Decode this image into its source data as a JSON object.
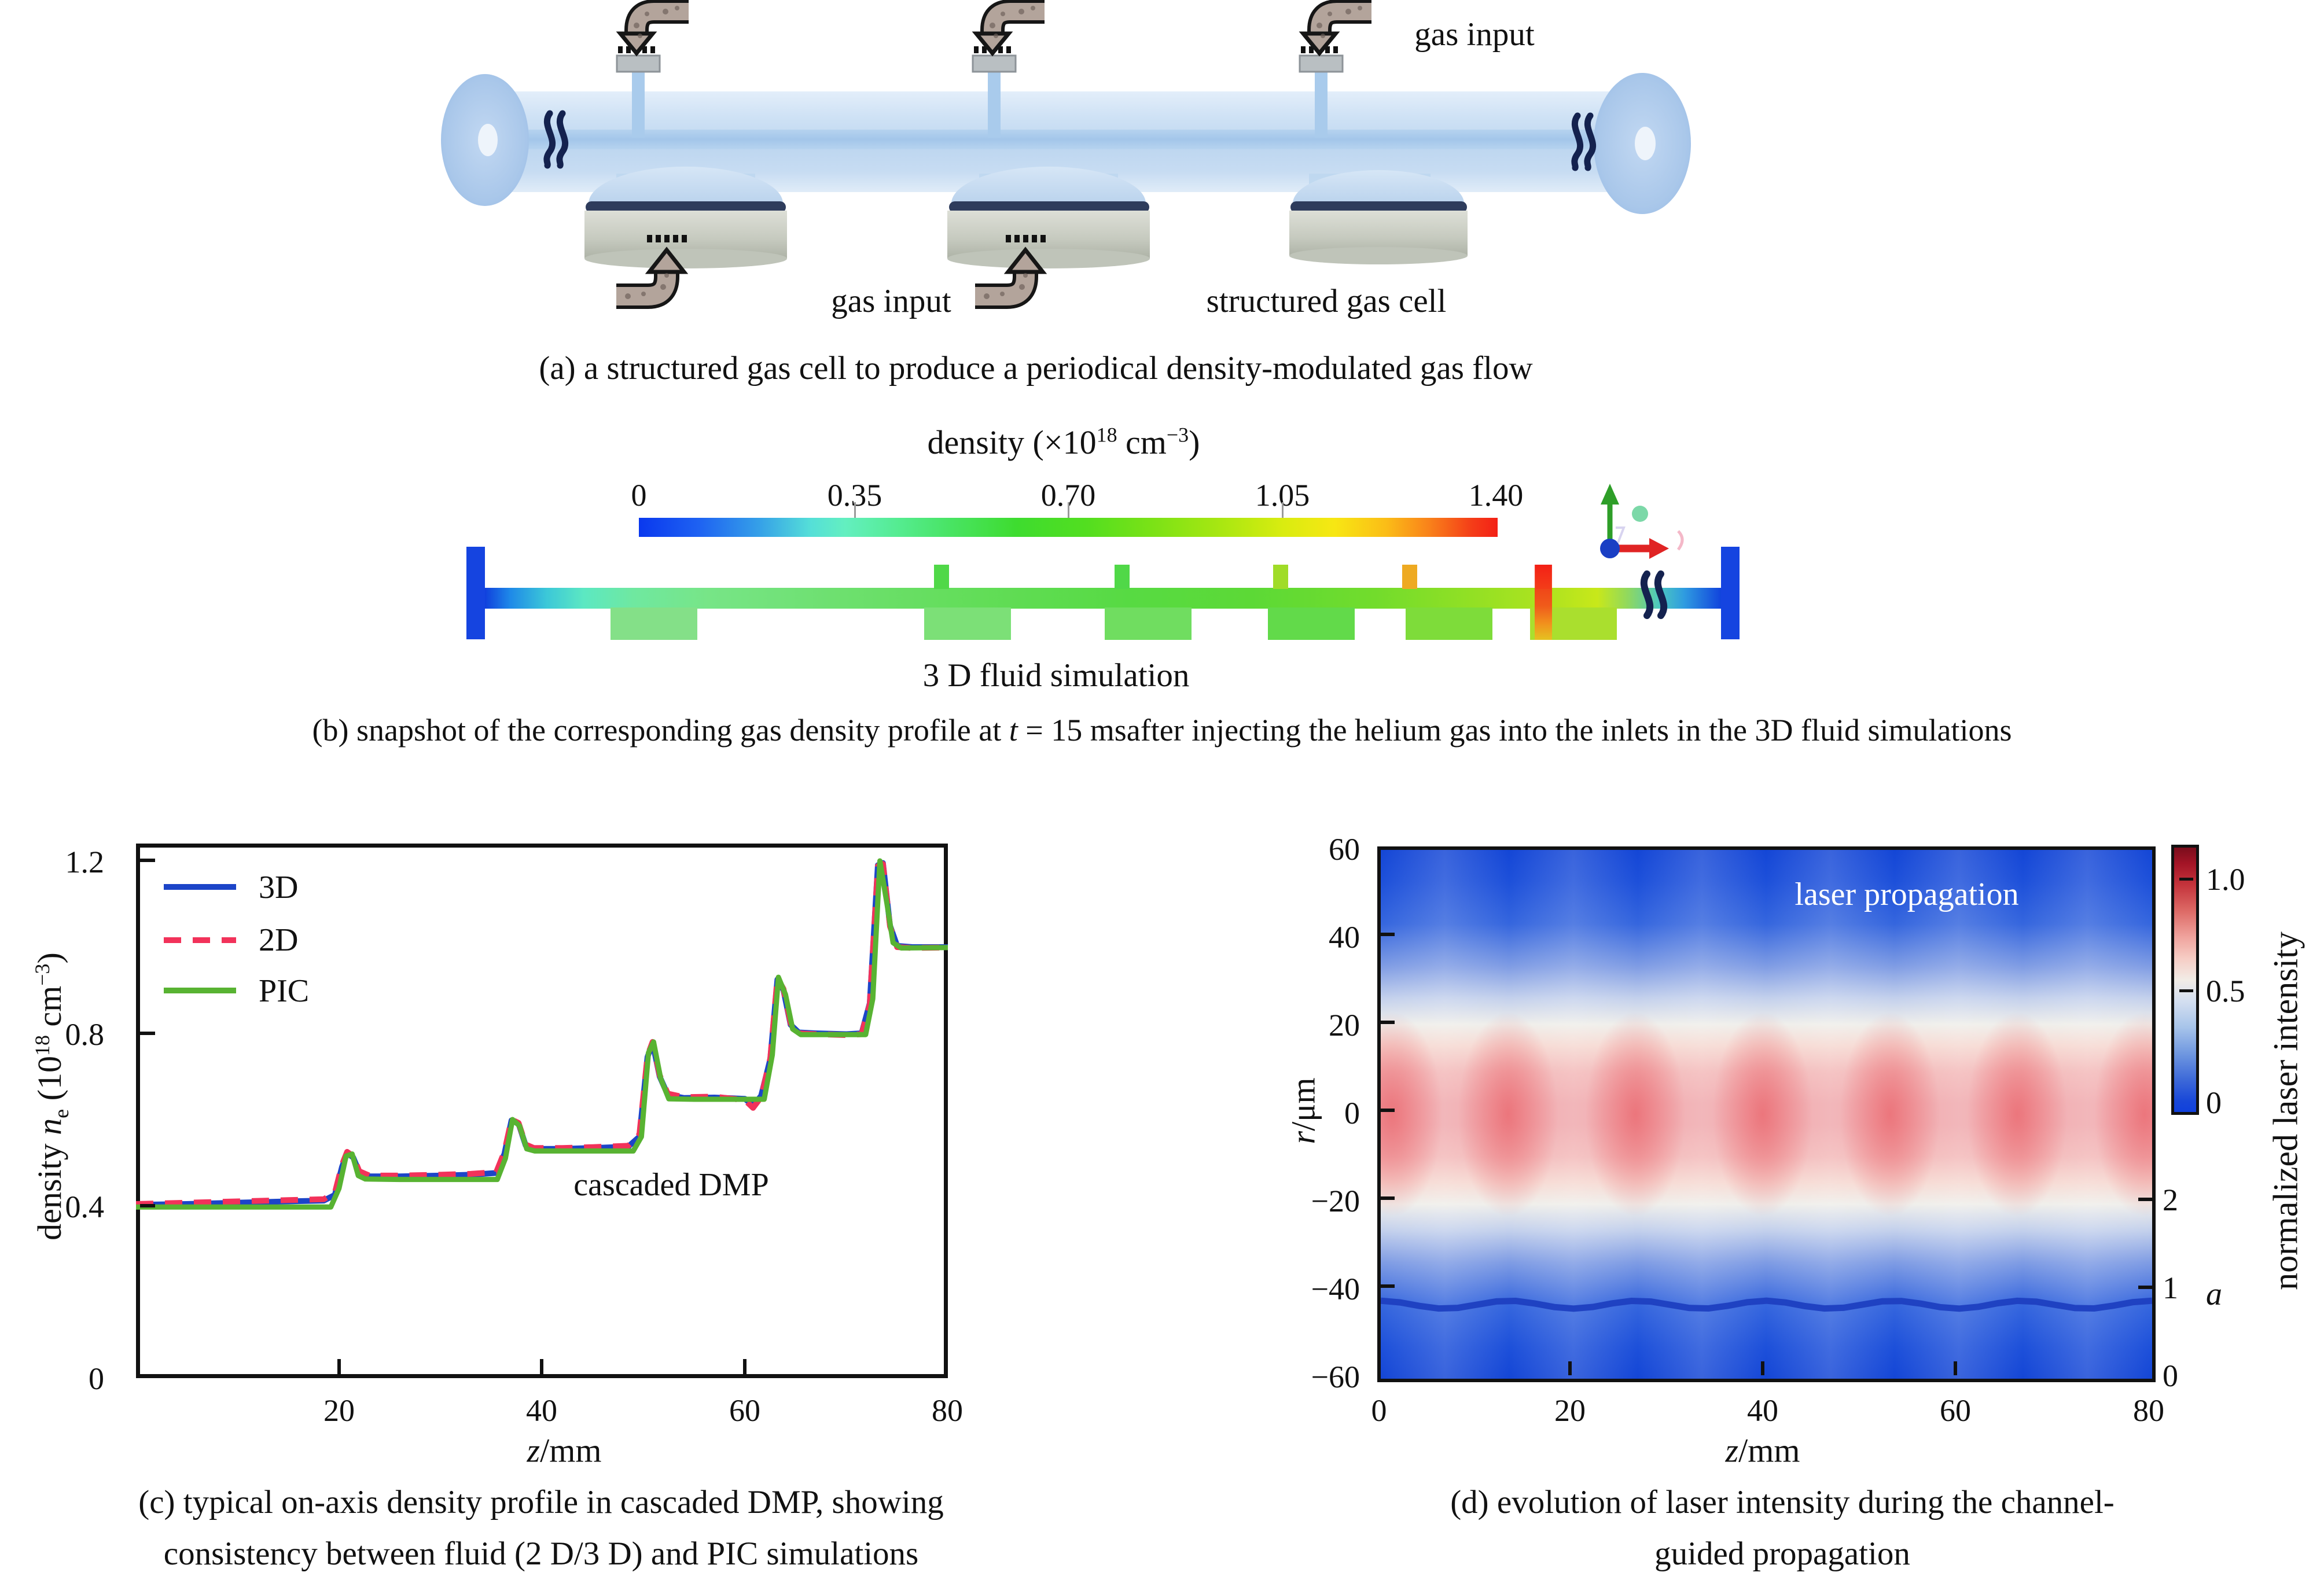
{
  "figure": {
    "panel_a": {
      "caption": "(a) a structured gas cell to produce a periodical density-modulated gas flow",
      "label_gas_input_top": "gas input",
      "label_gas_input_bottom": "gas input",
      "label_structured_gas_cell": "structured gas cell"
    },
    "panel_b": {
      "title_pre": "density  (×10",
      "title_sup1": "18",
      "title_mid": " cm",
      "title_sup2": "−3",
      "title_post": ")",
      "colorbar_ticks": [
        "0",
        "0.35",
        "0.70",
        "1.05",
        "1.40"
      ],
      "sim_label": "3 D fluid simulation",
      "caption_pre": "(b) snapshot of the corresponding gas density profile at ",
      "caption_italic": "t",
      "caption_post": " = 15 msafter injecting the helium gas into the inlets in the 3D fluid simulations"
    },
    "panel_c": {
      "yticks": [
        "1.2",
        "0.8",
        "0.4",
        "0"
      ],
      "xticks": [
        "20",
        "40",
        "60",
        "80"
      ],
      "ylabel_pre": "density ",
      "ylabel_italic": "n",
      "ylabel_sub": "e",
      "ylabel_mid": " (10",
      "ylabel_sup": "18",
      "ylabel_unit": " cm",
      "ylabel_sup2": "−3",
      "ylabel_post": ")",
      "xlabel_italic": "z",
      "xlabel_post": "/mm",
      "legend": [
        "3D",
        "2D",
        "PIC"
      ],
      "annotation": "cascaded DMP",
      "caption_line1": "(c) typical on-axis density profile in cascaded DMP, showing",
      "caption_line2": "consistency between fluid (2 D/3 D) and PIC simulations"
    },
    "panel_d": {
      "yticks": [
        "60",
        "40",
        "20",
        "0",
        "−20",
        "−40",
        "−60"
      ],
      "xticks": [
        "0",
        "20",
        "40",
        "60",
        "80"
      ],
      "ylabel_italic": "r",
      "ylabel_post": "/μm",
      "xlabel_italic": "z",
      "xlabel_post": "/mm",
      "annotation": "laser propagation",
      "colorbar_ticks": [
        "1.0",
        "0.5",
        "0"
      ],
      "colorbar_label": "normalized laser intensity",
      "a_axis_ticks": [
        "2",
        "1",
        "0"
      ],
      "a_axis_label": "a"
    }
  },
  "chart_data": [
    {
      "type": "line",
      "panel": "c",
      "title": "",
      "xlabel": "z/mm",
      "ylabel": "density ne (10^18 cm^-3)",
      "xlim": [
        0,
        80
      ],
      "ylim": [
        0,
        1.2
      ],
      "xticks": [
        20,
        40,
        60,
        80
      ],
      "yticks": [
        0,
        0.4,
        0.8,
        1.2
      ],
      "annotation": "cascaded DMP",
      "grid": false,
      "legend_position": "upper-left-inside",
      "series": [
        {
          "name": "3D",
          "color": "#1c45c8",
          "dash": null,
          "points": [
            [
              0,
              0.402
            ],
            [
              5,
              0.404
            ],
            [
              10,
              0.407
            ],
            [
              15,
              0.41
            ],
            [
              18.5,
              0.412
            ],
            [
              19.6,
              0.425
            ],
            [
              20.3,
              0.49
            ],
            [
              20.8,
              0.522
            ],
            [
              21.4,
              0.512
            ],
            [
              22,
              0.478
            ],
            [
              23,
              0.468
            ],
            [
              26,
              0.468
            ],
            [
              30,
              0.47
            ],
            [
              33,
              0.472
            ],
            [
              35.5,
              0.476
            ],
            [
              36.3,
              0.52
            ],
            [
              37,
              0.598
            ],
            [
              37.7,
              0.59
            ],
            [
              38.4,
              0.54
            ],
            [
              39.2,
              0.532
            ],
            [
              42,
              0.532
            ],
            [
              45,
              0.534
            ],
            [
              48.5,
              0.537
            ],
            [
              49.6,
              0.56
            ],
            [
              50.4,
              0.745
            ],
            [
              50.9,
              0.778
            ],
            [
              51.6,
              0.7
            ],
            [
              52.4,
              0.657
            ],
            [
              54,
              0.65
            ],
            [
              57,
              0.651
            ],
            [
              60,
              0.648
            ],
            [
              60.8,
              0.632
            ],
            [
              61.6,
              0.655
            ],
            [
              62.5,
              0.74
            ],
            [
              63.2,
              0.925
            ],
            [
              63.8,
              0.9
            ],
            [
              64.5,
              0.82
            ],
            [
              65.3,
              0.802
            ],
            [
              67,
              0.8
            ],
            [
              70,
              0.798
            ],
            [
              71.5,
              0.8
            ],
            [
              72.3,
              0.87
            ],
            [
              73.1,
              1.19
            ],
            [
              73.6,
              1.195
            ],
            [
              74.3,
              1.05
            ],
            [
              75,
              1.003
            ],
            [
              76.5,
              1.0
            ],
            [
              80,
              1.0
            ]
          ]
        },
        {
          "name": "2D",
          "color": "#f2325a",
          "dash": "30 20",
          "points": [
            [
              0,
              0.404
            ],
            [
              5,
              0.407
            ],
            [
              10,
              0.41
            ],
            [
              15,
              0.413
            ],
            [
              18.5,
              0.415
            ],
            [
              19.6,
              0.43
            ],
            [
              20.3,
              0.495
            ],
            [
              20.8,
              0.525
            ],
            [
              21.4,
              0.515
            ],
            [
              22,
              0.48
            ],
            [
              23,
              0.47
            ],
            [
              26,
              0.47
            ],
            [
              30,
              0.472
            ],
            [
              33,
              0.474
            ],
            [
              35.5,
              0.478
            ],
            [
              36.3,
              0.525
            ],
            [
              37,
              0.6
            ],
            [
              37.7,
              0.592
            ],
            [
              38.4,
              0.542
            ],
            [
              39.2,
              0.534
            ],
            [
              42,
              0.534
            ],
            [
              45,
              0.536
            ],
            [
              48.5,
              0.539
            ],
            [
              49.6,
              0.565
            ],
            [
              50.4,
              0.748
            ],
            [
              50.9,
              0.78
            ],
            [
              51.6,
              0.703
            ],
            [
              52.4,
              0.66
            ],
            [
              54,
              0.652
            ],
            [
              57,
              0.653
            ],
            [
              60,
              0.645
            ],
            [
              60.8,
              0.627
            ],
            [
              61.6,
              0.652
            ],
            [
              62.5,
              0.742
            ],
            [
              63.2,
              0.928
            ],
            [
              63.8,
              0.903
            ],
            [
              64.5,
              0.823
            ],
            [
              65.3,
              0.8
            ],
            [
              67,
              0.798
            ],
            [
              70,
              0.796
            ],
            [
              71.5,
              0.798
            ],
            [
              72.3,
              0.868
            ],
            [
              73.1,
              1.188
            ],
            [
              73.6,
              1.193
            ],
            [
              74.3,
              1.048
            ],
            [
              75,
              1.0
            ],
            [
              76.5,
              0.998
            ],
            [
              80,
              0.999
            ]
          ]
        },
        {
          "name": "PIC",
          "color": "#58b332",
          "dash": null,
          "points": [
            [
              0,
              0.397
            ],
            [
              5,
              0.397
            ],
            [
              10,
              0.397
            ],
            [
              15,
              0.397
            ],
            [
              19.2,
              0.397
            ],
            [
              20,
              0.44
            ],
            [
              20.7,
              0.515
            ],
            [
              21.3,
              0.52
            ],
            [
              21.9,
              0.47
            ],
            [
              22.6,
              0.462
            ],
            [
              26,
              0.461
            ],
            [
              30,
              0.461
            ],
            [
              35.6,
              0.461
            ],
            [
              36.4,
              0.51
            ],
            [
              37.1,
              0.6
            ],
            [
              37.8,
              0.585
            ],
            [
              38.5,
              0.532
            ],
            [
              39.3,
              0.527
            ],
            [
              43,
              0.527
            ],
            [
              47,
              0.527
            ],
            [
              49,
              0.527
            ],
            [
              49.8,
              0.56
            ],
            [
              50.5,
              0.755
            ],
            [
              51,
              0.78
            ],
            [
              51.7,
              0.695
            ],
            [
              52.5,
              0.648
            ],
            [
              55,
              0.647
            ],
            [
              58,
              0.647
            ],
            [
              61.9,
              0.647
            ],
            [
              62.7,
              0.75
            ],
            [
              63.3,
              0.93
            ],
            [
              64,
              0.89
            ],
            [
              64.7,
              0.81
            ],
            [
              65.5,
              0.797
            ],
            [
              68,
              0.797
            ],
            [
              71.9,
              0.797
            ],
            [
              72.6,
              0.88
            ],
            [
              73.3,
              1.2
            ],
            [
              74,
              1.1
            ],
            [
              74.6,
              1.01
            ],
            [
              75.4,
              0.998
            ],
            [
              80,
              0.999
            ]
          ]
        }
      ]
    },
    {
      "type": "heatmap",
      "panel": "d",
      "annotation": "laser propagation",
      "x": {
        "label": "z/mm",
        "range": [
          0,
          80
        ],
        "ticks": [
          0,
          20,
          40,
          60,
          80
        ]
      },
      "y": {
        "label": "r/μm",
        "range": [
          -60,
          60
        ],
        "ticks": [
          -60,
          -40,
          -20,
          0,
          20,
          40,
          60
        ]
      },
      "colorbar": {
        "label": "normalized laser intensity",
        "ticks": [
          0,
          0.5,
          1.0
        ],
        "range": [
          0,
          1.0
        ]
      },
      "pattern": {
        "description": "periodic self-focusing of guided laser: pink/red intensity blobs on axis, blue low-intensity background, white transition bands near |r|=20-25 um",
        "blob_centers_z_mm": [
          1,
          14.3,
          27.6,
          40.9,
          54.2,
          67.5,
          79.5
        ],
        "core_halfwidth_um": 18,
        "peak_normalized_intensity": 0.85,
        "background_normalized_intensity": 0.08
      },
      "a_line": {
        "axis_label": "a",
        "axis_ticks": [
          0,
          1,
          2
        ],
        "points": [
          [
            0,
            0.885
          ],
          [
            2,
            0.866
          ],
          [
            4,
            0.826
          ],
          [
            6,
            0.797
          ],
          [
            8,
            0.804
          ],
          [
            10,
            0.841
          ],
          [
            12,
            0.877
          ],
          [
            14,
            0.883
          ],
          [
            16,
            0.853
          ],
          [
            18,
            0.813
          ],
          [
            20,
            0.795
          ],
          [
            22,
            0.814
          ],
          [
            24,
            0.855
          ],
          [
            26,
            0.883
          ],
          [
            28,
            0.876
          ],
          [
            30,
            0.839
          ],
          [
            32,
            0.803
          ],
          [
            34,
            0.798
          ],
          [
            36,
            0.827
          ],
          [
            38,
            0.868
          ],
          [
            40,
            0.885
          ],
          [
            42,
            0.865
          ],
          [
            44,
            0.824
          ],
          [
            46,
            0.797
          ],
          [
            48,
            0.805
          ],
          [
            50,
            0.842
          ],
          [
            52,
            0.878
          ],
          [
            54,
            0.882
          ],
          [
            56,
            0.852
          ],
          [
            58,
            0.812
          ],
          [
            60,
            0.795
          ],
          [
            62,
            0.816
          ],
          [
            64,
            0.857
          ],
          [
            66,
            0.884
          ],
          [
            68,
            0.874
          ],
          [
            70,
            0.837
          ],
          [
            72,
            0.802
          ],
          [
            74,
            0.798
          ],
          [
            76,
            0.829
          ],
          [
            78,
            0.869
          ],
          [
            80,
            0.885
          ]
        ]
      }
    },
    {
      "type": "colorbar",
      "panel": "b",
      "title": "density (×10^18 cm^-3)",
      "range": [
        0,
        1.4
      ],
      "ticks": [
        0,
        0.35,
        0.7,
        1.05,
        1.4
      ],
      "colormap": "jet (blue-cyan-green-yellow-red)"
    }
  ]
}
